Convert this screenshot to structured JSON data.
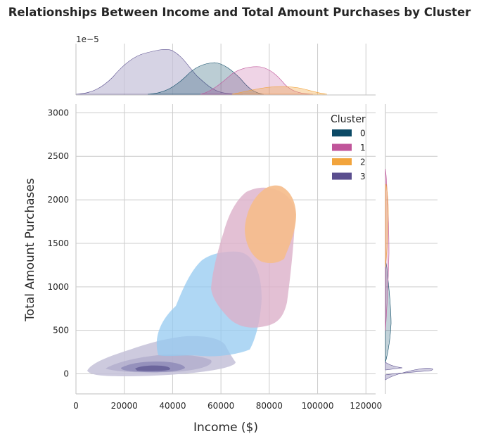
{
  "chart_data": {
    "type": "kde-joint",
    "title": "Relationships Between Income and Total Amount Purchases by Cluster",
    "xlabel": "Income ($)",
    "ylabel": "Total Amount Purchases",
    "xlim": [
      0,
      124000
    ],
    "ylim": [
      -230,
      3100
    ],
    "xticks": [
      0,
      20000,
      40000,
      60000,
      80000,
      100000,
      120000
    ],
    "yticks": [
      0,
      500,
      1000,
      1500,
      2000,
      2500,
      3000
    ],
    "top_marginal_scale_label": "1e−5",
    "grid": true,
    "legend": {
      "title": "Cluster",
      "placement": "upper-right",
      "entries": [
        "0",
        "1",
        "2",
        "3"
      ]
    },
    "series": [
      {
        "name": "0",
        "color": "#0c4a66",
        "fill": "#94caf0",
        "income_range": [
          42000,
          72000
        ],
        "purchases_range": [
          0,
          1380
        ],
        "income_peak": 58000
      },
      {
        "name": "1",
        "color": "#c0559a",
        "fill": "#dcb0c9",
        "income_range": [
          58000,
          91000
        ],
        "purchases_range": [
          220,
          1700
        ],
        "income_peak": 73000
      },
      {
        "name": "2",
        "color": "#f2a43c",
        "fill": "#f5bd8c",
        "income_range": [
          71000,
          91000
        ],
        "purchases_range": [
          1300,
          2170
        ],
        "income_peak": 83000
      },
      {
        "name": "3",
        "color": "#5a4e8e",
        "fill": "#c4c1d8",
        "income_range": [
          3000,
          66000
        ],
        "purchases_range": [
          -5,
          440
        ],
        "income_peak": 34000
      }
    ]
  }
}
